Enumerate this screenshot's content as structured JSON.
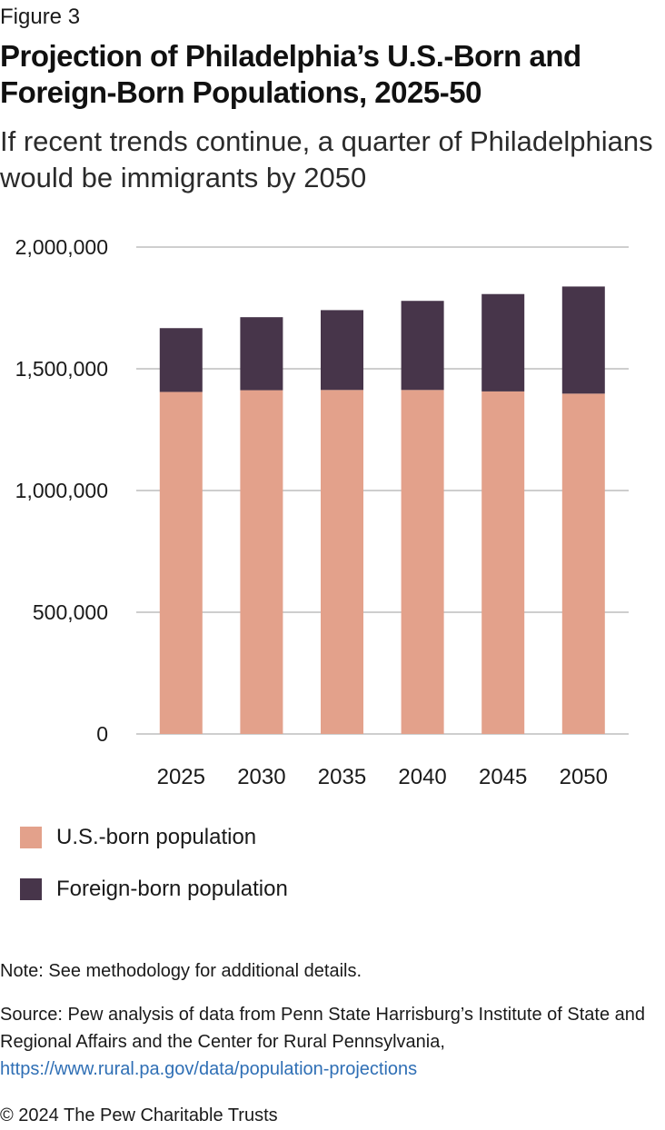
{
  "figure_label": "Figure 3",
  "title": "Projection of Philadelphia’s U.S.-Born and Foreign-Born Populations, 2025-50",
  "subtitle": "If recent trends continue, a quarter of Philadelphians would be immigrants by 2050",
  "colors": {
    "us_born": "#e3a18b",
    "foreign_born": "#47354a",
    "gridline": "#bdbdbd",
    "link": "#2f6fb5"
  },
  "chart_data": {
    "type": "bar",
    "stacked": true,
    "categories": [
      "2025",
      "2030",
      "2035",
      "2040",
      "2045",
      "2050"
    ],
    "series": [
      {
        "name": "U.S.-born population",
        "color": "#e3a18b",
        "values": [
          1405000,
          1412000,
          1413000,
          1413000,
          1407000,
          1398000
        ]
      },
      {
        "name": "Foreign-born population",
        "color": "#47354a",
        "values": [
          262000,
          300000,
          328000,
          366000,
          400000,
          440000
        ]
      }
    ],
    "yticks": [
      0,
      500000,
      1000000,
      1500000,
      2000000
    ],
    "ytick_labels": [
      "0",
      "500,000",
      "1,000,000",
      "1,500,000",
      "2,000,000"
    ],
    "ylim": [
      0,
      2000000
    ],
    "grid": true,
    "legend_position": "bottom-left",
    "xlabel": "",
    "ylabel": ""
  },
  "legend": {
    "items": [
      {
        "label": "U.S.-born population"
      },
      {
        "label": "Foreign-born population"
      }
    ]
  },
  "note": "Note: See methodology for additional details.",
  "source": {
    "text": "Source: Pew analysis of data from Penn State Harrisburg’s Institute of State and Regional Affairs and the Center for Rural Pennsylvania,",
    "link": "https://www.rural.pa.gov/data/population-projections"
  },
  "copyright": "© 2024 The Pew Charitable Trusts"
}
